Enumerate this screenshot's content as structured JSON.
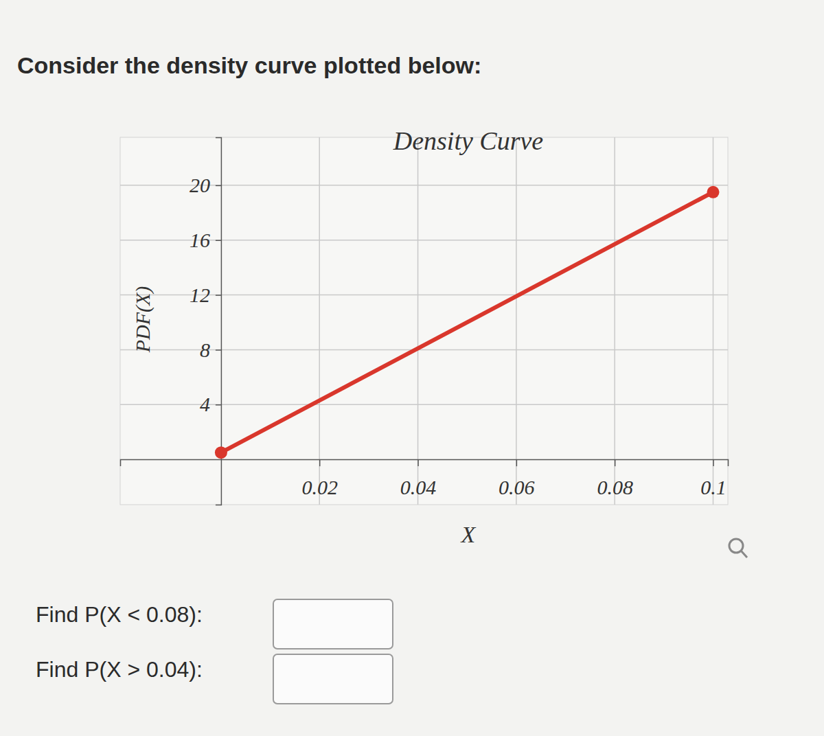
{
  "prompt": "Consider the density curve plotted below:",
  "questions": [
    "Find P(X < 0.08):",
    "Find P(X > 0.04):"
  ],
  "chart_data": {
    "type": "line",
    "title": "Density Curve",
    "xlabel": "X",
    "ylabel": "PDF(X)",
    "x": [
      0,
      0.1
    ],
    "values": [
      0.5,
      19.5
    ],
    "color": "#d9372c",
    "marker": "circle",
    "xlim": [
      -0.0205,
      0.103
    ],
    "xticks": [
      0.02,
      0.04,
      0.06,
      0.08,
      0.1
    ],
    "ylim": [
      -3.3,
      23.5
    ],
    "yticks": [
      4,
      8,
      12,
      16,
      20
    ],
    "grid": true
  }
}
